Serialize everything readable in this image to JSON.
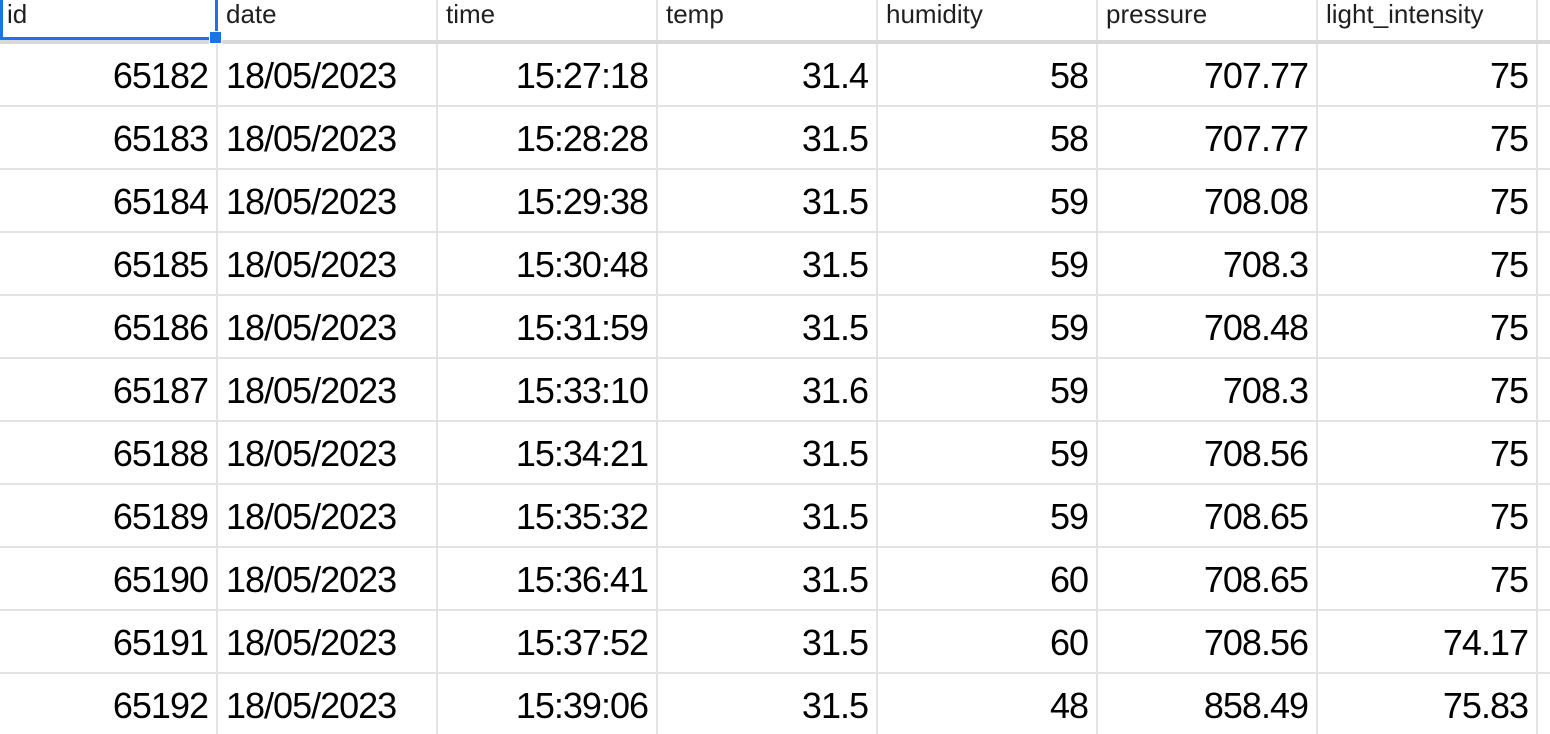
{
  "sheet": {
    "headers": [
      "id",
      "date",
      "time",
      "temp",
      "humidity",
      "pressure",
      "light_intensity"
    ],
    "rows": [
      {
        "id": "65182",
        "date": "18/05/2023",
        "time": "15:27:18",
        "temp": "31.4",
        "humidity": "58",
        "pressure": "707.77",
        "light_intensity": "75"
      },
      {
        "id": "65183",
        "date": "18/05/2023",
        "time": "15:28:28",
        "temp": "31.5",
        "humidity": "58",
        "pressure": "707.77",
        "light_intensity": "75"
      },
      {
        "id": "65184",
        "date": "18/05/2023",
        "time": "15:29:38",
        "temp": "31.5",
        "humidity": "59",
        "pressure": "708.08",
        "light_intensity": "75"
      },
      {
        "id": "65185",
        "date": "18/05/2023",
        "time": "15:30:48",
        "temp": "31.5",
        "humidity": "59",
        "pressure": "708.3",
        "light_intensity": "75"
      },
      {
        "id": "65186",
        "date": "18/05/2023",
        "time": "15:31:59",
        "temp": "31.5",
        "humidity": "59",
        "pressure": "708.48",
        "light_intensity": "75"
      },
      {
        "id": "65187",
        "date": "18/05/2023",
        "time": "15:33:10",
        "temp": "31.6",
        "humidity": "59",
        "pressure": "708.3",
        "light_intensity": "75"
      },
      {
        "id": "65188",
        "date": "18/05/2023",
        "time": "15:34:21",
        "temp": "31.5",
        "humidity": "59",
        "pressure": "708.56",
        "light_intensity": "75"
      },
      {
        "id": "65189",
        "date": "18/05/2023",
        "time": "15:35:32",
        "temp": "31.5",
        "humidity": "59",
        "pressure": "708.65",
        "light_intensity": "75"
      },
      {
        "id": "65190",
        "date": "18/05/2023",
        "time": "15:36:41",
        "temp": "31.5",
        "humidity": "60",
        "pressure": "708.65",
        "light_intensity": "75"
      },
      {
        "id": "65191",
        "date": "18/05/2023",
        "time": "15:37:52",
        "temp": "31.5",
        "humidity": "60",
        "pressure": "708.56",
        "light_intensity": "74.17"
      },
      {
        "id": "65192",
        "date": "18/05/2023",
        "time": "15:39:06",
        "temp": "31.5",
        "humidity": "48",
        "pressure": "858.49",
        "light_intensity": "75.83"
      }
    ],
    "selected_cell": "A1",
    "colors": {
      "selection": "#1a73e8",
      "gridline": "#e3e3e3",
      "frozen_divider": "#d9d9d9"
    }
  }
}
